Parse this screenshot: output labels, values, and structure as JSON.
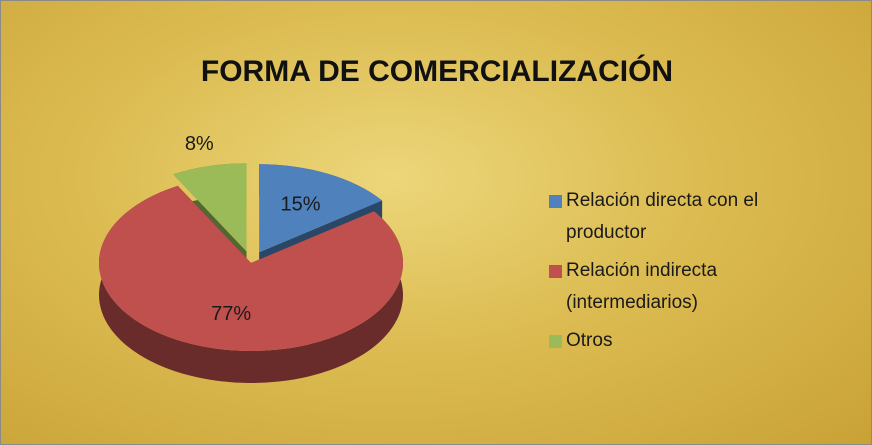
{
  "chart_data": {
    "type": "pie",
    "title": "FORMA DE COMERCIALIZACIÓN",
    "categories": [
      "Relación directa con el productor",
      "Relación indirecta (intermediarios)",
      "Otros"
    ],
    "values": [
      15,
      77,
      8
    ],
    "value_labels": [
      "15%",
      "77%",
      "8%"
    ],
    "colors": [
      "#4f81bd",
      "#c0504d",
      "#9bbb59"
    ],
    "legend": "right"
  }
}
